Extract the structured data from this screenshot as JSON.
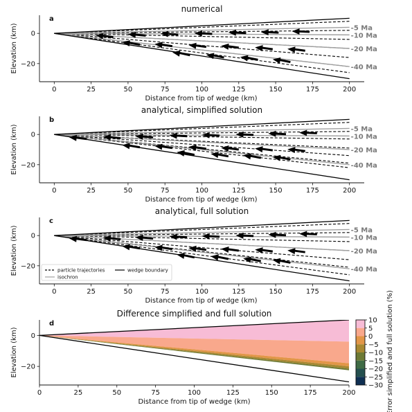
{
  "chart_data": [
    {
      "type": "line",
      "panel": "a",
      "title": "numerical",
      "xlabel": "Distance from tip of wedge (km)",
      "ylabel": "Elevation (km)",
      "xlim": [
        -10,
        210
      ],
      "ylim": [
        -32,
        12
      ],
      "xticks": [
        0,
        25,
        50,
        75,
        100,
        125,
        150,
        175,
        200
      ],
      "yticks": [
        0,
        -20
      ],
      "wedge_boundary": {
        "top": [
          [
            0,
            0
          ],
          [
            200,
            10
          ]
        ],
        "bottom": [
          [
            0,
            0
          ],
          [
            200,
            -30
          ]
        ]
      },
      "isochrons": [
        {
          "label": "5 Ma",
          "points": [
            [
              0,
              0
            ],
            [
              200,
              4
            ]
          ]
        },
        {
          "label": "10 Ma",
          "points": [
            [
              0,
              0
            ],
            [
              200,
              -1
            ]
          ]
        },
        {
          "label": "20 Ma",
          "points": [
            [
              0,
              0
            ],
            [
              200,
              -10
            ]
          ]
        },
        {
          "label": "40 Ma",
          "points": [
            [
              0,
              0
            ],
            [
              200,
              -22
            ]
          ]
        }
      ],
      "particle_trajectories_end_y": [
        8,
        2,
        -4,
        -10,
        -16,
        -22,
        -26
      ],
      "velocity_arrows": [
        {
          "x": 40,
          "y": -2.5,
          "dx": -12,
          "dy": 1.2
        },
        {
          "x": 62,
          "y": -1.5,
          "dx": -12,
          "dy": 0.9
        },
        {
          "x": 84,
          "y": -0.8,
          "dx": -12,
          "dy": 0.6
        },
        {
          "x": 107,
          "y": -0.4,
          "dx": -12,
          "dy": 0.5
        },
        {
          "x": 130,
          "y": 0.2,
          "dx": -12,
          "dy": 0.4
        },
        {
          "x": 152,
          "y": 0.5,
          "dx": -12,
          "dy": 0.4
        },
        {
          "x": 173,
          "y": 1.0,
          "dx": -12,
          "dy": 0.4
        },
        {
          "x": 58,
          "y": -7.5,
          "dx": -12,
          "dy": 1.6
        },
        {
          "x": 80,
          "y": -8.5,
          "dx": -12,
          "dy": 1.4
        },
        {
          "x": 103,
          "y": -9.0,
          "dx": -12,
          "dy": 1.3
        },
        {
          "x": 125,
          "y": -9.5,
          "dx": -12,
          "dy": 1.2
        },
        {
          "x": 148,
          "y": -10.5,
          "dx": -12,
          "dy": 1.2
        },
        {
          "x": 170,
          "y": -11.5,
          "dx": -12,
          "dy": 1.2
        },
        {
          "x": 92,
          "y": -14.5,
          "dx": -12,
          "dy": 2.0
        },
        {
          "x": 115,
          "y": -16.0,
          "dx": -12,
          "dy": 1.8
        },
        {
          "x": 138,
          "y": -17.5,
          "dx": -12,
          "dy": 1.8
        },
        {
          "x": 160,
          "y": -19.0,
          "dx": -12,
          "dy": 1.8
        }
      ],
      "isochron_labels": [
        "5 Ma",
        "10 Ma",
        "20 Ma",
        "40 Ma"
      ]
    },
    {
      "type": "line",
      "panel": "b",
      "title": "analytical, simplified solution",
      "xlabel": "Distance from tip of wedge (km)",
      "ylabel": "Elevation (km)",
      "xlim": [
        -10,
        210
      ],
      "ylim": [
        -32,
        12
      ],
      "xticks": [
        0,
        25,
        50,
        75,
        100,
        125,
        150,
        175,
        200
      ],
      "yticks": [
        0,
        -20
      ],
      "wedge_boundary": {
        "top": [
          [
            0,
            0
          ],
          [
            200,
            10
          ]
        ],
        "bottom": [
          [
            0,
            0
          ],
          [
            200,
            -30
          ]
        ]
      },
      "isochrons": [
        {
          "label": "5 Ma",
          "points": [
            [
              0,
              0
            ],
            [
              200,
              4
            ]
          ]
        },
        {
          "label": "10 Ma",
          "points": [
            [
              0,
              0
            ],
            [
              200,
              -1
            ]
          ]
        },
        {
          "label": "20 Ma",
          "points": [
            [
              0,
              0
            ],
            [
              200,
              -10
            ]
          ]
        },
        {
          "label": "40 Ma",
          "points": [
            [
              0,
              0
            ],
            [
              200,
              -20
            ]
          ]
        }
      ],
      "particle_trajectories_end_y": [
        8,
        2,
        -3,
        -9,
        -14,
        -19,
        -22
      ],
      "velocity_arrows": [
        {
          "x": 22,
          "y": -3.0,
          "dx": -12,
          "dy": 1.2
        },
        {
          "x": 45,
          "y": -2.5,
          "dx": -12,
          "dy": 1.0
        },
        {
          "x": 67,
          "y": -2.0,
          "dx": -12,
          "dy": 0.8
        },
        {
          "x": 90,
          "y": -1.2,
          "dx": -12,
          "dy": 0.6
        },
        {
          "x": 112,
          "y": -0.8,
          "dx": -12,
          "dy": 0.5
        },
        {
          "x": 135,
          "y": -0.3,
          "dx": -12,
          "dy": 0.4
        },
        {
          "x": 157,
          "y": 0.2,
          "dx": -12,
          "dy": 0.4
        },
        {
          "x": 178,
          "y": 0.8,
          "dx": -12,
          "dy": 0.4
        },
        {
          "x": 58,
          "y": -8.5,
          "dx": -12,
          "dy": 1.5
        },
        {
          "x": 80,
          "y": -9.0,
          "dx": -12,
          "dy": 1.4
        },
        {
          "x": 103,
          "y": -9.5,
          "dx": -12,
          "dy": 1.3
        },
        {
          "x": 125,
          "y": -10.0,
          "dx": -12,
          "dy": 1.2
        },
        {
          "x": 148,
          "y": -10.5,
          "dx": -12,
          "dy": 1.2
        },
        {
          "x": 170,
          "y": -11.0,
          "dx": -12,
          "dy": 1.2
        },
        {
          "x": 95,
          "y": -13.5,
          "dx": -12,
          "dy": 1.8
        },
        {
          "x": 118,
          "y": -14.5,
          "dx": -12,
          "dy": 1.7
        },
        {
          "x": 140,
          "y": -15.5,
          "dx": -12,
          "dy": 1.7
        },
        {
          "x": 160,
          "y": -16.5,
          "dx": -12,
          "dy": 1.6
        }
      ],
      "isochron_labels": [
        "5 Ma",
        "10 Ma",
        "20 Ma",
        "40 Ma"
      ]
    },
    {
      "type": "line",
      "panel": "c",
      "title": "analytical, full solution",
      "xlabel": "Distance from tip of wedge (km)",
      "ylabel": "Elevation (km)",
      "xlim": [
        -10,
        210
      ],
      "ylim": [
        -32,
        12
      ],
      "xticks": [
        0,
        25,
        50,
        75,
        100,
        125,
        150,
        175,
        200
      ],
      "yticks": [
        0,
        -20
      ],
      "wedge_boundary": {
        "top": [
          [
            0,
            0
          ],
          [
            200,
            10
          ]
        ],
        "bottom": [
          [
            0,
            0
          ],
          [
            200,
            -30
          ]
        ]
      },
      "isochrons": [
        {
          "label": "5 Ma",
          "points": [
            [
              0,
              0
            ],
            [
              200,
              4
            ]
          ]
        },
        {
          "label": "10 Ma",
          "points": [
            [
              0,
              0
            ],
            [
              200,
              -1
            ]
          ]
        },
        {
          "label": "20 Ma",
          "points": [
            [
              0,
              0
            ],
            [
              200,
              -10
            ]
          ]
        },
        {
          "label": "40 Ma",
          "points": [
            [
              0,
              0
            ],
            [
              200,
              -22
            ]
          ]
        }
      ],
      "particle_trajectories_end_y": [
        8,
        2,
        -4,
        -10,
        -16,
        -21,
        -26
      ],
      "velocity_arrows": [
        {
          "x": 22,
          "y": -3.0,
          "dx": -12,
          "dy": 1.2
        },
        {
          "x": 45,
          "y": -2.5,
          "dx": -12,
          "dy": 1.0
        },
        {
          "x": 67,
          "y": -2.0,
          "dx": -12,
          "dy": 0.8
        },
        {
          "x": 90,
          "y": -1.2,
          "dx": -12,
          "dy": 0.6
        },
        {
          "x": 112,
          "y": -0.8,
          "dx": -12,
          "dy": 0.5
        },
        {
          "x": 135,
          "y": -0.3,
          "dx": -12,
          "dy": 0.4
        },
        {
          "x": 157,
          "y": 0.2,
          "dx": -12,
          "dy": 0.4
        },
        {
          "x": 178,
          "y": 0.8,
          "dx": -12,
          "dy": 0.4
        },
        {
          "x": 58,
          "y": -8.5,
          "dx": -12,
          "dy": 1.5
        },
        {
          "x": 80,
          "y": -9.0,
          "dx": -12,
          "dy": 1.4
        },
        {
          "x": 103,
          "y": -9.5,
          "dx": -12,
          "dy": 1.3
        },
        {
          "x": 125,
          "y": -10.0,
          "dx": -12,
          "dy": 1.2
        },
        {
          "x": 148,
          "y": -10.5,
          "dx": -12,
          "dy": 1.2
        },
        {
          "x": 170,
          "y": -11.0,
          "dx": -12,
          "dy": 1.2
        },
        {
          "x": 95,
          "y": -14.5,
          "dx": -12,
          "dy": 1.9
        },
        {
          "x": 118,
          "y": -15.5,
          "dx": -12,
          "dy": 1.8
        },
        {
          "x": 140,
          "y": -17.0,
          "dx": -12,
          "dy": 1.8
        },
        {
          "x": 160,
          "y": -18.0,
          "dx": -12,
          "dy": 1.8
        }
      ],
      "isochron_labels": [
        "5 Ma",
        "10 Ma",
        "20 Ma",
        "40 Ma"
      ],
      "legend": {
        "placement": "lower-left",
        "entries": [
          {
            "label": "particle trajectories",
            "style": "dashed",
            "color": "#000000"
          },
          {
            "label": "wedge boundary",
            "style": "solid",
            "color": "#000000"
          },
          {
            "label": "isochron",
            "style": "solid",
            "color": "#a0a0a0"
          }
        ]
      }
    },
    {
      "type": "heatmap",
      "panel": "d",
      "title": "Difference simplified and full solution",
      "xlabel": "Distance from tip of wedge (km)",
      "ylabel": "Elevation (km)",
      "xlim": [
        0,
        200
      ],
      "ylim": [
        -32,
        10
      ],
      "xticks": [
        0,
        25,
        50,
        75,
        100,
        125,
        150,
        175,
        200
      ],
      "yticks": [
        0,
        -20
      ],
      "wedge_boundary": {
        "top": [
          [
            0,
            0
          ],
          [
            200,
            10
          ]
        ],
        "bottom": [
          [
            0,
            0
          ],
          [
            200,
            -30
          ]
        ]
      },
      "bands": [
        {
          "value_range": [
            5,
            10
          ],
          "color": "#f7bcd6",
          "top_end_y": 10,
          "bottom_end_y": -4
        },
        {
          "value_range": [
            0,
            5
          ],
          "color": "#f9a88c",
          "top_end_y": -4,
          "bottom_end_y": -18
        },
        {
          "value_range": [
            -5,
            0
          ],
          "color": "#e29648",
          "top_end_y": -18,
          "bottom_end_y": -20
        },
        {
          "value_range": [
            -10,
            -5
          ],
          "color": "#a88832",
          "top_end_y": -20,
          "bottom_end_y": -21.5
        },
        {
          "value_range": [
            -15,
            -10
          ],
          "color": "#6d7a35",
          "top_end_y": -21.5,
          "bottom_end_y": -22.5
        }
      ],
      "colorbar": {
        "label": "Error simplified and full solution (%)",
        "ticks": [
          10,
          5,
          0,
          -5,
          -10,
          -15,
          -20,
          -25,
          -30
        ],
        "levels": [
          {
            "from": 5,
            "to": 10,
            "color": "#f7bcd6"
          },
          {
            "from": 0,
            "to": 5,
            "color": "#f9a88c"
          },
          {
            "from": -5,
            "to": 0,
            "color": "#e29648"
          },
          {
            "from": -10,
            "to": -5,
            "color": "#a88832"
          },
          {
            "from": -15,
            "to": -10,
            "color": "#6d7a35"
          },
          {
            "from": -20,
            "to": -15,
            "color": "#3f6b45"
          },
          {
            "from": -25,
            "to": -20,
            "color": "#25504f"
          },
          {
            "from": -30,
            "to": -25,
            "color": "#0f2f52"
          }
        ]
      }
    }
  ],
  "colors": {
    "isochron": "#a0a0a0",
    "isochron_label": "#7a7a7a",
    "trajectory": "#000000",
    "boundary": "#000000",
    "arrow": "#000000"
  }
}
